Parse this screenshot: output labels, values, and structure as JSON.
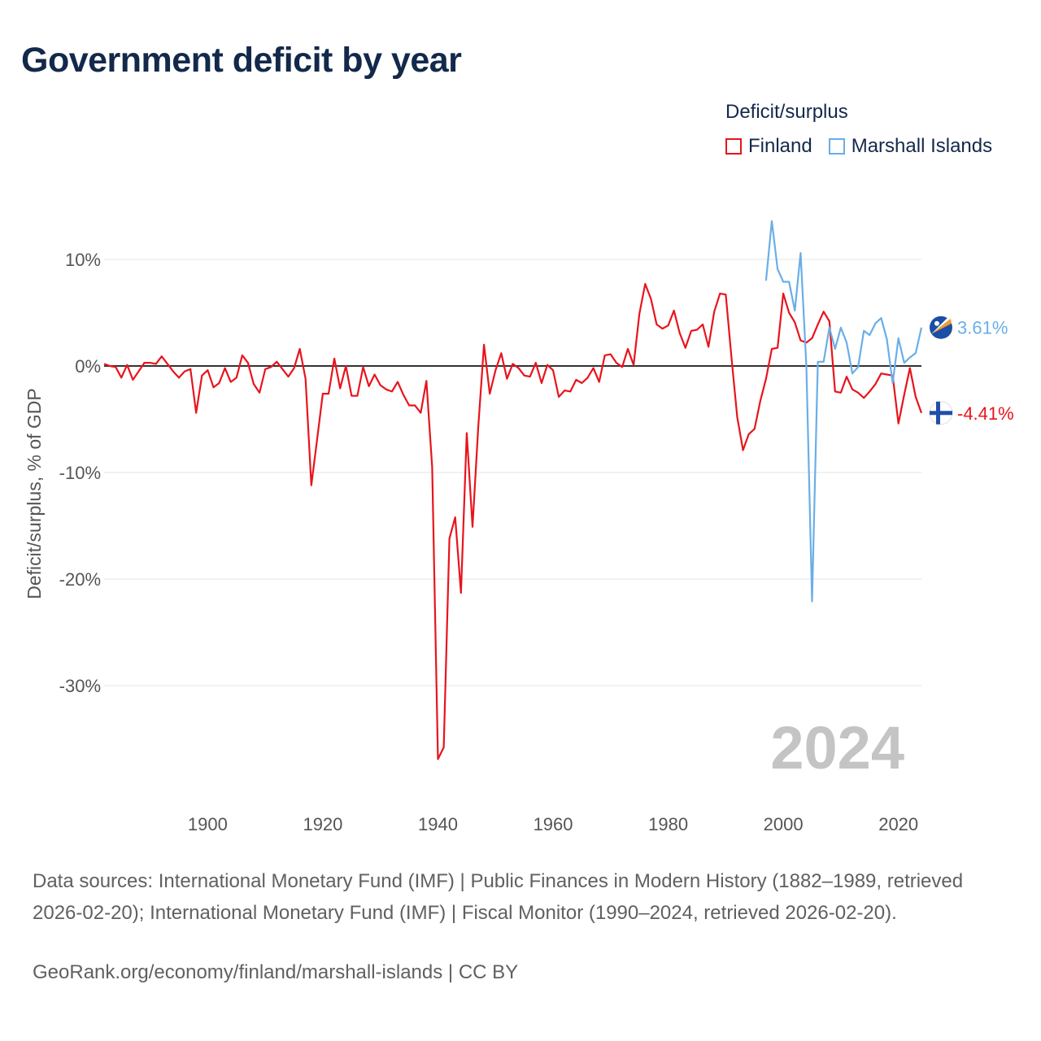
{
  "chart_data": {
    "type": "line",
    "title": "Government deficit by year",
    "ylabel": "Deficit/surplus, % of GDP",
    "xlabel": "",
    "xlim": [
      1882,
      2024
    ],
    "ylim": [
      -40,
      15
    ],
    "yticks": [
      10,
      0,
      -10,
      -20,
      -30
    ],
    "ytick_labels": [
      "10%",
      "0%",
      "-10%",
      "-20%",
      "-30%"
    ],
    "xticks": [
      1900,
      1920,
      1940,
      1960,
      1980,
      2000,
      2020
    ],
    "xtick_labels": [
      "1900",
      "1920",
      "1940",
      "1960",
      "1980",
      "2000",
      "2020"
    ],
    "legend_title": "Deficit/surplus",
    "year_watermark": "2024",
    "series": [
      {
        "name": "Finland",
        "color": "#e8141c",
        "end_label": "-4.41%",
        "flag_icon": "finland-flag-icon",
        "x": [
          1882,
          1883,
          1884,
          1885,
          1886,
          1887,
          1888,
          1889,
          1890,
          1891,
          1892,
          1893,
          1894,
          1895,
          1896,
          1897,
          1898,
          1899,
          1900,
          1901,
          1902,
          1903,
          1904,
          1905,
          1906,
          1907,
          1908,
          1909,
          1910,
          1911,
          1912,
          1913,
          1914,
          1915,
          1916,
          1917,
          1918,
          1919,
          1920,
          1921,
          1922,
          1923,
          1924,
          1925,
          1926,
          1927,
          1928,
          1929,
          1930,
          1931,
          1932,
          1933,
          1934,
          1935,
          1936,
          1937,
          1938,
          1939,
          1940,
          1941,
          1942,
          1943,
          1944,
          1945,
          1946,
          1947,
          1948,
          1949,
          1950,
          1951,
          1952,
          1953,
          1954,
          1955,
          1956,
          1957,
          1958,
          1959,
          1960,
          1961,
          1962,
          1963,
          1964,
          1965,
          1966,
          1967,
          1968,
          1969,
          1970,
          1971,
          1972,
          1973,
          1974,
          1975,
          1976,
          1977,
          1978,
          1979,
          1980,
          1981,
          1982,
          1983,
          1984,
          1985,
          1986,
          1987,
          1988,
          1989,
          1990,
          1991,
          1992,
          1993,
          1994,
          1995,
          1996,
          1997,
          1998,
          1999,
          2000,
          2001,
          2002,
          2003,
          2004,
          2005,
          2006,
          2007,
          2008,
          2009,
          2010,
          2011,
          2012,
          2013,
          2014,
          2015,
          2016,
          2017,
          2018,
          2019,
          2020,
          2021,
          2022,
          2023,
          2024
        ],
        "values": [
          0.2,
          0.0,
          -0.1,
          -1.1,
          0.1,
          -1.3,
          -0.5,
          0.3,
          0.3,
          0.2,
          0.9,
          0.2,
          -0.5,
          -1.1,
          -0.5,
          -0.3,
          -4.4,
          -0.9,
          -0.4,
          -2.0,
          -1.6,
          -0.2,
          -1.5,
          -1.1,
          1.0,
          0.3,
          -1.7,
          -2.5,
          -0.3,
          -0.1,
          0.4,
          -0.3,
          -1.0,
          -0.2,
          1.6,
          -1.2,
          -11.2,
          -6.9,
          -2.6,
          -2.6,
          0.7,
          -2.1,
          0.0,
          -2.8,
          -2.8,
          -0.1,
          -1.9,
          -0.8,
          -1.8,
          -2.2,
          -2.4,
          -1.5,
          -2.7,
          -3.7,
          -3.7,
          -4.4,
          -1.4,
          -9.5,
          -36.9,
          -35.8,
          -16.2,
          -14.2,
          -21.3,
          -6.3,
          -15.1,
          -5.8,
          2.0,
          -2.6,
          -0.4,
          1.2,
          -1.2,
          0.2,
          -0.2,
          -0.9,
          -1.0,
          0.3,
          -1.6,
          0.1,
          -0.4,
          -2.9,
          -2.3,
          -2.4,
          -1.3,
          -1.6,
          -1.1,
          -0.2,
          -1.5,
          1.0,
          1.1,
          0.3,
          -0.1,
          1.6,
          0.1,
          4.9,
          7.7,
          6.3,
          3.9,
          3.5,
          3.8,
          5.2,
          3.1,
          1.7,
          3.3,
          3.4,
          3.9,
          1.8,
          5.1,
          6.8,
          6.7,
          0.8,
          -4.8,
          -7.9,
          -6.4,
          -5.9,
          -3.3,
          -1.2,
          1.6,
          1.7,
          6.8,
          5.0,
          4.1,
          2.4,
          2.2,
          2.6,
          3.9,
          5.1,
          4.2,
          -2.4,
          -2.5,
          -1.0,
          -2.2,
          -2.5,
          -3.0,
          -2.4,
          -1.7,
          -0.7,
          -0.8,
          -0.9,
          -5.4,
          -2.7,
          -0.2,
          -2.9,
          -4.41
        ]
      },
      {
        "name": "Marshall Islands",
        "color": "#6aaee8",
        "end_label": "3.61%",
        "flag_icon": "marshall-islands-flag-icon",
        "x": [
          1997,
          1998,
          1999,
          2000,
          2001,
          2002,
          2003,
          2004,
          2005,
          2006,
          2007,
          2008,
          2009,
          2010,
          2011,
          2012,
          2013,
          2014,
          2015,
          2016,
          2017,
          2018,
          2019,
          2020,
          2021,
          2022,
          2023,
          2024
        ],
        "values": [
          8.0,
          13.6,
          9.1,
          7.9,
          7.9,
          5.2,
          10.6,
          0.0,
          -22.1,
          0.4,
          0.4,
          3.6,
          1.6,
          3.6,
          2.2,
          -0.7,
          -0.1,
          3.3,
          2.9,
          4.0,
          4.5,
          2.5,
          -1.6,
          2.6,
          0.3,
          0.8,
          1.2,
          3.61
        ]
      }
    ]
  },
  "footer": {
    "sources": "Data sources: International Monetary Fund (IMF) | Public Finances in Modern History (1882–1989, retrieved 2026-02-20); International Monetary Fund (IMF) | Fiscal Monitor (1990–2024, retrieved 2026-02-20).",
    "credit": "GeoRank.org/economy/finland/marshall-islands | CC BY"
  }
}
